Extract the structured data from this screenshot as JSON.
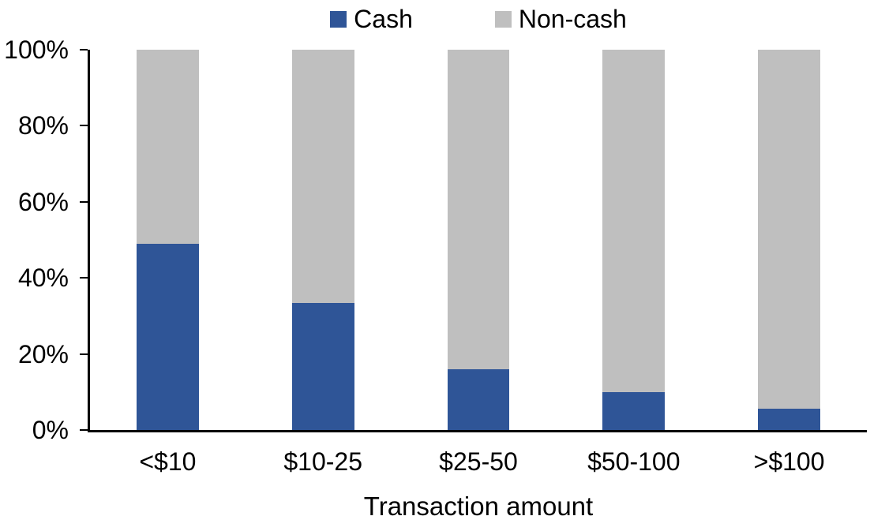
{
  "chart_data": {
    "type": "bar",
    "variant": "stacked-100-percent",
    "title": "",
    "xlabel": "Transaction amount",
    "ylabel": "",
    "categories": [
      "<$10",
      "$10-25",
      "$25-50",
      "$50-100",
      ">$100"
    ],
    "series": [
      {
        "name": "Cash",
        "color": "#2F5597",
        "values": [
          49,
          33.5,
          16,
          10,
          5.5
        ]
      },
      {
        "name": "Non-cash",
        "color": "#BFBFBF",
        "values": [
          51,
          66.5,
          84,
          90,
          94.5
        ]
      }
    ],
    "ylim": [
      0,
      100
    ],
    "yticks": [
      0,
      20,
      40,
      60,
      80,
      100
    ],
    "ytick_labels": [
      "0%",
      "20%",
      "40%",
      "60%",
      "80%",
      "100%"
    ],
    "legend": {
      "position": "top",
      "entries": [
        "Cash",
        "Non-cash"
      ]
    },
    "grid": false,
    "axis_color": "#000000",
    "text_color": "#000000",
    "background": "#FFFFFF"
  }
}
